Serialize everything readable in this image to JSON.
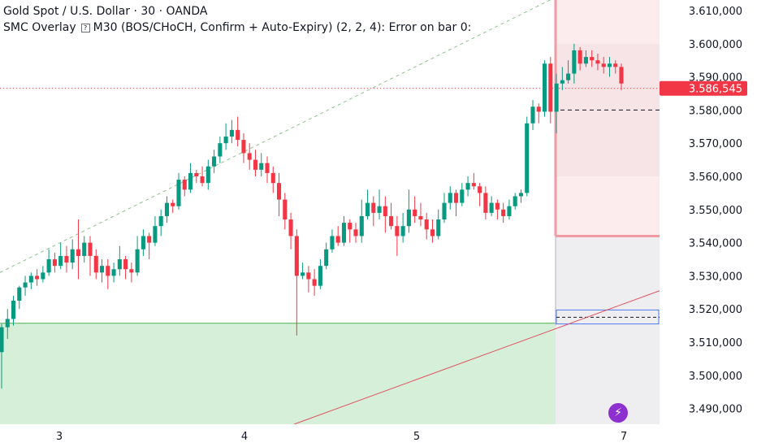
{
  "header": {
    "symbol_line": "Gold Spot / U.S. Dollar · 30 · OANDA",
    "indicator_name": "SMC Overlay",
    "indicator_params": "M30 (BOS/CHoCH, Confirm + Auto-Expiry) (2, 2, 4): Error on bar 0:"
  },
  "chart_data": {
    "type": "candlestick",
    "timeframe": "30",
    "ylim": [
      3.484,
      3.614
    ],
    "x_ticks": [
      "3",
      "4",
      "5",
      "7"
    ],
    "y_ticks": [
      "3.610,000",
      "3.600,000",
      "3.590,000",
      "3.580,000",
      "3.570,000",
      "3.560,000",
      "3.550,000",
      "3.540,000",
      "3.530,000",
      "3.520,000",
      "3.510,000",
      "3.500,000",
      "3.490,000"
    ],
    "last_price": 3.586545,
    "last_price_label": "3.586,545",
    "colors": {
      "up": "#089981",
      "down": "#f23645",
      "zone_green": "#d6efd8",
      "zone_red": "#fdecee"
    },
    "candles": [
      [
        3.507,
        3.5145,
        3.496,
        3.5155
      ],
      [
        3.5145,
        3.517,
        3.511,
        3.52
      ],
      [
        3.517,
        3.5225,
        3.515,
        3.524
      ],
      [
        3.5225,
        3.5265,
        3.52,
        3.527
      ],
      [
        3.5265,
        3.528,
        3.524,
        3.53
      ],
      [
        3.528,
        3.53,
        3.526,
        3.531
      ],
      [
        3.53,
        3.529,
        3.527,
        3.532
      ],
      [
        3.529,
        3.531,
        3.528,
        3.533
      ],
      [
        3.531,
        3.535,
        3.53,
        3.538
      ],
      [
        3.535,
        3.533,
        3.531,
        3.537
      ],
      [
        3.533,
        3.536,
        3.532,
        3.54
      ],
      [
        3.536,
        3.534,
        3.531,
        3.539
      ],
      [
        3.534,
        3.538,
        3.532,
        3.541
      ],
      [
        3.538,
        3.536,
        3.529,
        3.547
      ],
      [
        3.536,
        3.54,
        3.534,
        3.542
      ],
      [
        3.54,
        3.536,
        3.53,
        3.542
      ],
      [
        3.536,
        3.531,
        3.529,
        3.538
      ],
      [
        3.531,
        3.533,
        3.528,
        3.535
      ],
      [
        3.533,
        3.53,
        3.526,
        3.535
      ],
      [
        3.53,
        3.532,
        3.528,
        3.534
      ],
      [
        3.532,
        3.535,
        3.53,
        3.539
      ],
      [
        3.535,
        3.532,
        3.529,
        3.536
      ],
      [
        3.532,
        3.531,
        3.528,
        3.534
      ],
      [
        3.531,
        3.538,
        3.53,
        3.542
      ],
      [
        3.538,
        3.542,
        3.536,
        3.544
      ],
      [
        3.542,
        3.54,
        3.535,
        3.543
      ],
      [
        3.54,
        3.545,
        3.539,
        3.548
      ],
      [
        3.545,
        3.548,
        3.542,
        3.55
      ],
      [
        3.548,
        3.552,
        3.546,
        3.554
      ],
      [
        3.552,
        3.551,
        3.549,
        3.553
      ],
      [
        3.551,
        3.559,
        3.55,
        3.561
      ],
      [
        3.559,
        3.556,
        3.554,
        3.56
      ],
      [
        3.556,
        3.561,
        3.555,
        3.564
      ],
      [
        3.561,
        3.56,
        3.558,
        3.562
      ],
      [
        3.56,
        3.558,
        3.557,
        3.563
      ],
      [
        3.558,
        3.563,
        3.556,
        3.565
      ],
      [
        3.563,
        3.566,
        3.561,
        3.568
      ],
      [
        3.566,
        3.57,
        3.564,
        3.572
      ],
      [
        3.57,
        3.572,
        3.568,
        3.576
      ],
      [
        3.572,
        3.574,
        3.57,
        3.577
      ],
      [
        3.574,
        3.571,
        3.569,
        3.578
      ],
      [
        3.571,
        3.567,
        3.564,
        3.573
      ],
      [
        3.567,
        3.565,
        3.562,
        3.57
      ],
      [
        3.565,
        3.562,
        3.56,
        3.568
      ],
      [
        3.562,
        3.564,
        3.56,
        3.567
      ],
      [
        3.564,
        3.561,
        3.558,
        3.566
      ],
      [
        3.561,
        3.558,
        3.555,
        3.563
      ],
      [
        3.558,
        3.553,
        3.548,
        3.561
      ],
      [
        3.553,
        3.547,
        3.544,
        3.555
      ],
      [
        3.547,
        3.542,
        3.538,
        3.549
      ],
      [
        3.542,
        3.53,
        3.512,
        3.544
      ],
      [
        3.53,
        3.531,
        3.529,
        3.534
      ],
      [
        3.531,
        3.529,
        3.525,
        3.533
      ],
      [
        3.529,
        3.527,
        3.524,
        3.532
      ],
      [
        3.527,
        3.533,
        3.526,
        3.535
      ],
      [
        3.533,
        3.538,
        3.532,
        3.54
      ],
      [
        3.538,
        3.542,
        3.537,
        3.544
      ],
      [
        3.542,
        3.54,
        3.539,
        3.545
      ],
      [
        3.54,
        3.546,
        3.539,
        3.548
      ],
      [
        3.546,
        3.544,
        3.54,
        3.547
      ],
      [
        3.544,
        3.542,
        3.54,
        3.546
      ],
      [
        3.542,
        3.548,
        3.54,
        3.553
      ],
      [
        3.548,
        3.552,
        3.547,
        3.556
      ],
      [
        3.552,
        3.549,
        3.545,
        3.554
      ],
      [
        3.549,
        3.551,
        3.547,
        3.556
      ],
      [
        3.551,
        3.548,
        3.543,
        3.554
      ],
      [
        3.548,
        3.545,
        3.544,
        3.552
      ],
      [
        3.545,
        3.542,
        3.536,
        3.548
      ],
      [
        3.542,
        3.545,
        3.54,
        3.549
      ],
      [
        3.545,
        3.55,
        3.543,
        3.556
      ],
      [
        3.55,
        3.548,
        3.546,
        3.554
      ],
      [
        3.548,
        3.547,
        3.545,
        3.552
      ],
      [
        3.547,
        3.544,
        3.541,
        3.549
      ],
      [
        3.544,
        3.542,
        3.54,
        3.547
      ],
      [
        3.542,
        3.547,
        3.541,
        3.55
      ],
      [
        3.547,
        3.552,
        3.546,
        3.555
      ],
      [
        3.552,
        3.555,
        3.55,
        3.557
      ],
      [
        3.555,
        3.552,
        3.548,
        3.556
      ],
      [
        3.552,
        3.556,
        3.551,
        3.558
      ],
      [
        3.556,
        3.558,
        3.554,
        3.56
      ],
      [
        3.558,
        3.557,
        3.556,
        3.561
      ],
      [
        3.557,
        3.555,
        3.551,
        3.558
      ],
      [
        3.555,
        3.549,
        3.547,
        3.557
      ],
      [
        3.549,
        3.552,
        3.548,
        3.554
      ],
      [
        3.552,
        3.55,
        3.547,
        3.553
      ],
      [
        3.55,
        3.548,
        3.546,
        3.552
      ],
      [
        3.548,
        3.551,
        3.547,
        3.553
      ],
      [
        3.551,
        3.554,
        3.55,
        3.555
      ],
      [
        3.554,
        3.555,
        3.552,
        3.556
      ],
      [
        3.555,
        3.576,
        3.554,
        3.578
      ],
      [
        3.576,
        3.581,
        3.574,
        3.583
      ],
      [
        3.581,
        3.5795,
        3.576,
        3.582
      ],
      [
        3.5795,
        3.594,
        3.578,
        3.595
      ],
      [
        3.594,
        3.5795,
        3.576,
        3.596
      ],
      [
        3.5795,
        3.588,
        3.573,
        3.591
      ],
      [
        3.588,
        3.589,
        3.586,
        3.593
      ],
      [
        3.589,
        3.591,
        3.588,
        3.595
      ],
      [
        3.591,
        3.598,
        3.588,
        3.6
      ],
      [
        3.598,
        3.594,
        3.592,
        3.599
      ],
      [
        3.594,
        3.596,
        3.593,
        3.598
      ],
      [
        3.596,
        3.595,
        3.593,
        3.598
      ],
      [
        3.595,
        3.594,
        3.592,
        3.597
      ],
      [
        3.594,
        3.593,
        3.591,
        3.596
      ],
      [
        3.593,
        3.594,
        3.59,
        3.596
      ],
      [
        3.594,
        3.593,
        3.591,
        3.595
      ],
      [
        3.593,
        3.588,
        3.586,
        3.594
      ]
    ],
    "annotations": [
      {
        "kind": "zone",
        "name": "demand-zone",
        "from": 3.484,
        "to": 3.5157,
        "color": "#d6efd8"
      },
      {
        "kind": "zone",
        "name": "supply-zone",
        "from": 3.542,
        "to": 3.614,
        "color": "#fdecee"
      },
      {
        "kind": "hline",
        "name": "last-price-line",
        "value": 3.586545
      },
      {
        "kind": "hline",
        "name": "dashed-level",
        "value": 3.58
      }
    ]
  }
}
